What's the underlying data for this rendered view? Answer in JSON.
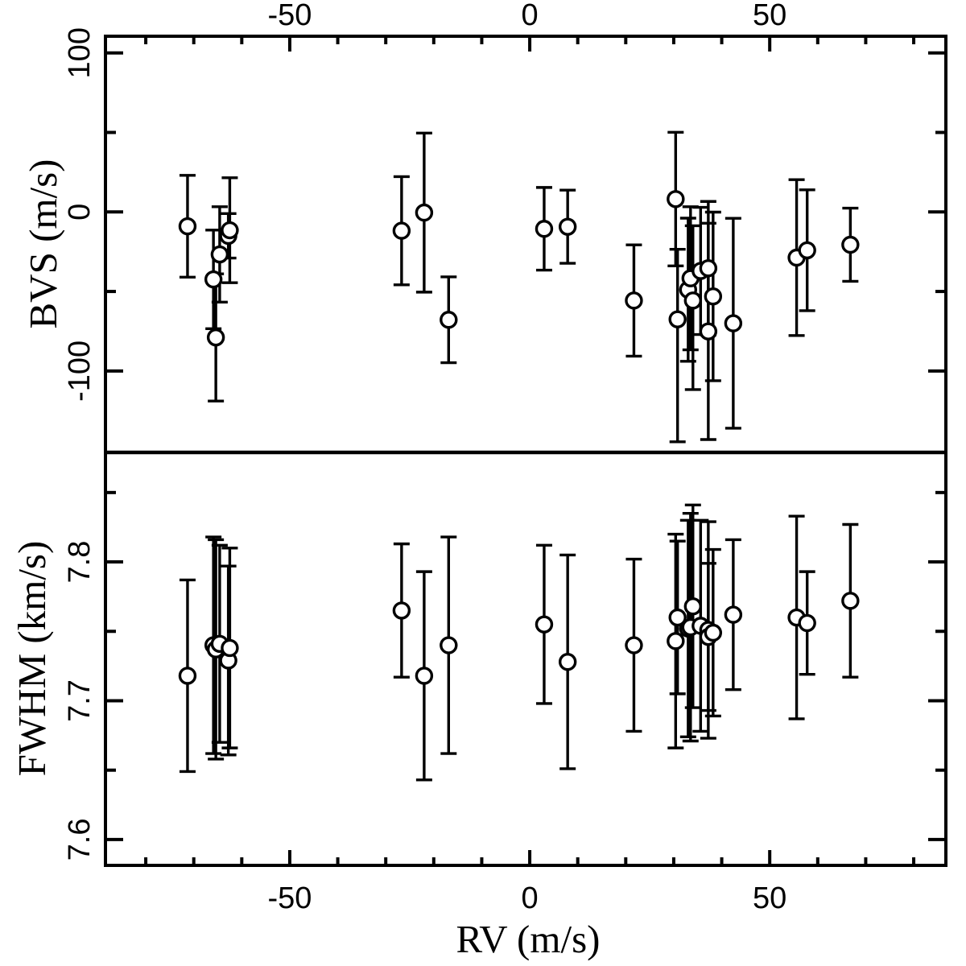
{
  "figure": {
    "description": "Two-panel scatter plot of line-profile diagnostics versus radial velocity",
    "background_color": "#ffffff",
    "foreground_color": "#000000"
  },
  "chart_data": {
    "type": "scatter",
    "xlabel": "RV (m/s)",
    "xlim": [
      -88.4,
      86.7
    ],
    "x_ticks": {
      "major": [
        -50,
        0,
        50
      ],
      "major_labels": [
        "-50",
        "0",
        "50"
      ],
      "minor": [
        -80,
        -70,
        -60,
        -40,
        -30,
        -20,
        -10,
        10,
        20,
        30,
        40,
        60,
        70,
        80
      ],
      "labels_on_top_axis": true,
      "labels_on_bottom_axis": true
    },
    "grid": false,
    "legend": "none",
    "marker": {
      "shape": "open-circle",
      "radius": 9.5,
      "stroke": "#000000",
      "stroke_width": 3.4,
      "fill": "#ffffff",
      "errorbar_cap_halfwidth": 10
    },
    "x": [
      -71.3,
      -65.9,
      -65.4,
      -64.6,
      -62.8,
      -62.5,
      -26.7,
      -22.0,
      -16.9,
      3.0,
      7.9,
      21.7,
      30.4,
      30.8,
      33.0,
      33.5,
      34.0,
      35.6,
      37.2,
      37.2,
      38.2,
      42.4,
      55.6,
      57.8,
      66.8
    ],
    "panels": [
      {
        "name": "BVS",
        "ylabel": "BVS (m/s)",
        "ylim": [
          -151.2,
          110.5
        ],
        "y_major": [
          100,
          0,
          -100
        ],
        "y_major_labels": [
          "100",
          "0",
          "-100"
        ],
        "y_minor": [
          50,
          -50
        ],
        "y": [
          -9.0,
          -42.4,
          -78.9,
          -26.7,
          -15.0,
          -11.5,
          -11.8,
          -0.4,
          -67.8,
          -10.6,
          -9.3,
          -55.7,
          8.1,
          -67.5,
          -48.9,
          -41.7,
          -55.7,
          -37.1,
          -35.4,
          -75.1,
          -53.1,
          -70.0,
          -28.7,
          -24.1,
          -20.6
        ],
        "yerr": [
          32,
          31,
          40,
          30,
          14,
          33,
          34,
          50,
          27,
          26,
          23,
          35,
          42,
          [
            44,
            77
          ],
          45,
          45,
          [
            47,
            56
          ],
          40,
          42,
          68,
          53,
          66,
          49,
          38,
          23
        ]
      },
      {
        "name": "FWHM",
        "ylabel": "FWHM (km/s)",
        "ylim": [
          7.5814,
          7.8789
        ],
        "y_major": [
          7.8,
          7.7,
          7.6
        ],
        "y_major_labels": [
          "7.8",
          "7.7",
          "7.6"
        ],
        "y_minor": [
          7.85,
          7.75,
          7.65
        ],
        "y": [
          7.718,
          7.74,
          7.737,
          7.741,
          7.729,
          7.738,
          7.765,
          7.718,
          7.74,
          7.755,
          7.728,
          7.74,
          7.743,
          7.76,
          7.752,
          7.753,
          7.768,
          7.754,
          7.751,
          7.746,
          7.749,
          7.762,
          7.76,
          7.756,
          7.772
        ],
        "yerr": [
          0.069,
          0.078,
          0.079,
          0.071,
          0.068,
          0.072,
          0.048,
          0.075,
          0.078,
          0.057,
          0.077,
          0.062,
          0.077,
          0.055,
          0.078,
          0.082,
          0.073,
          0.076,
          0.078,
          0.053,
          0.06,
          0.054,
          0.073,
          0.037,
          0.055
        ]
      }
    ]
  }
}
